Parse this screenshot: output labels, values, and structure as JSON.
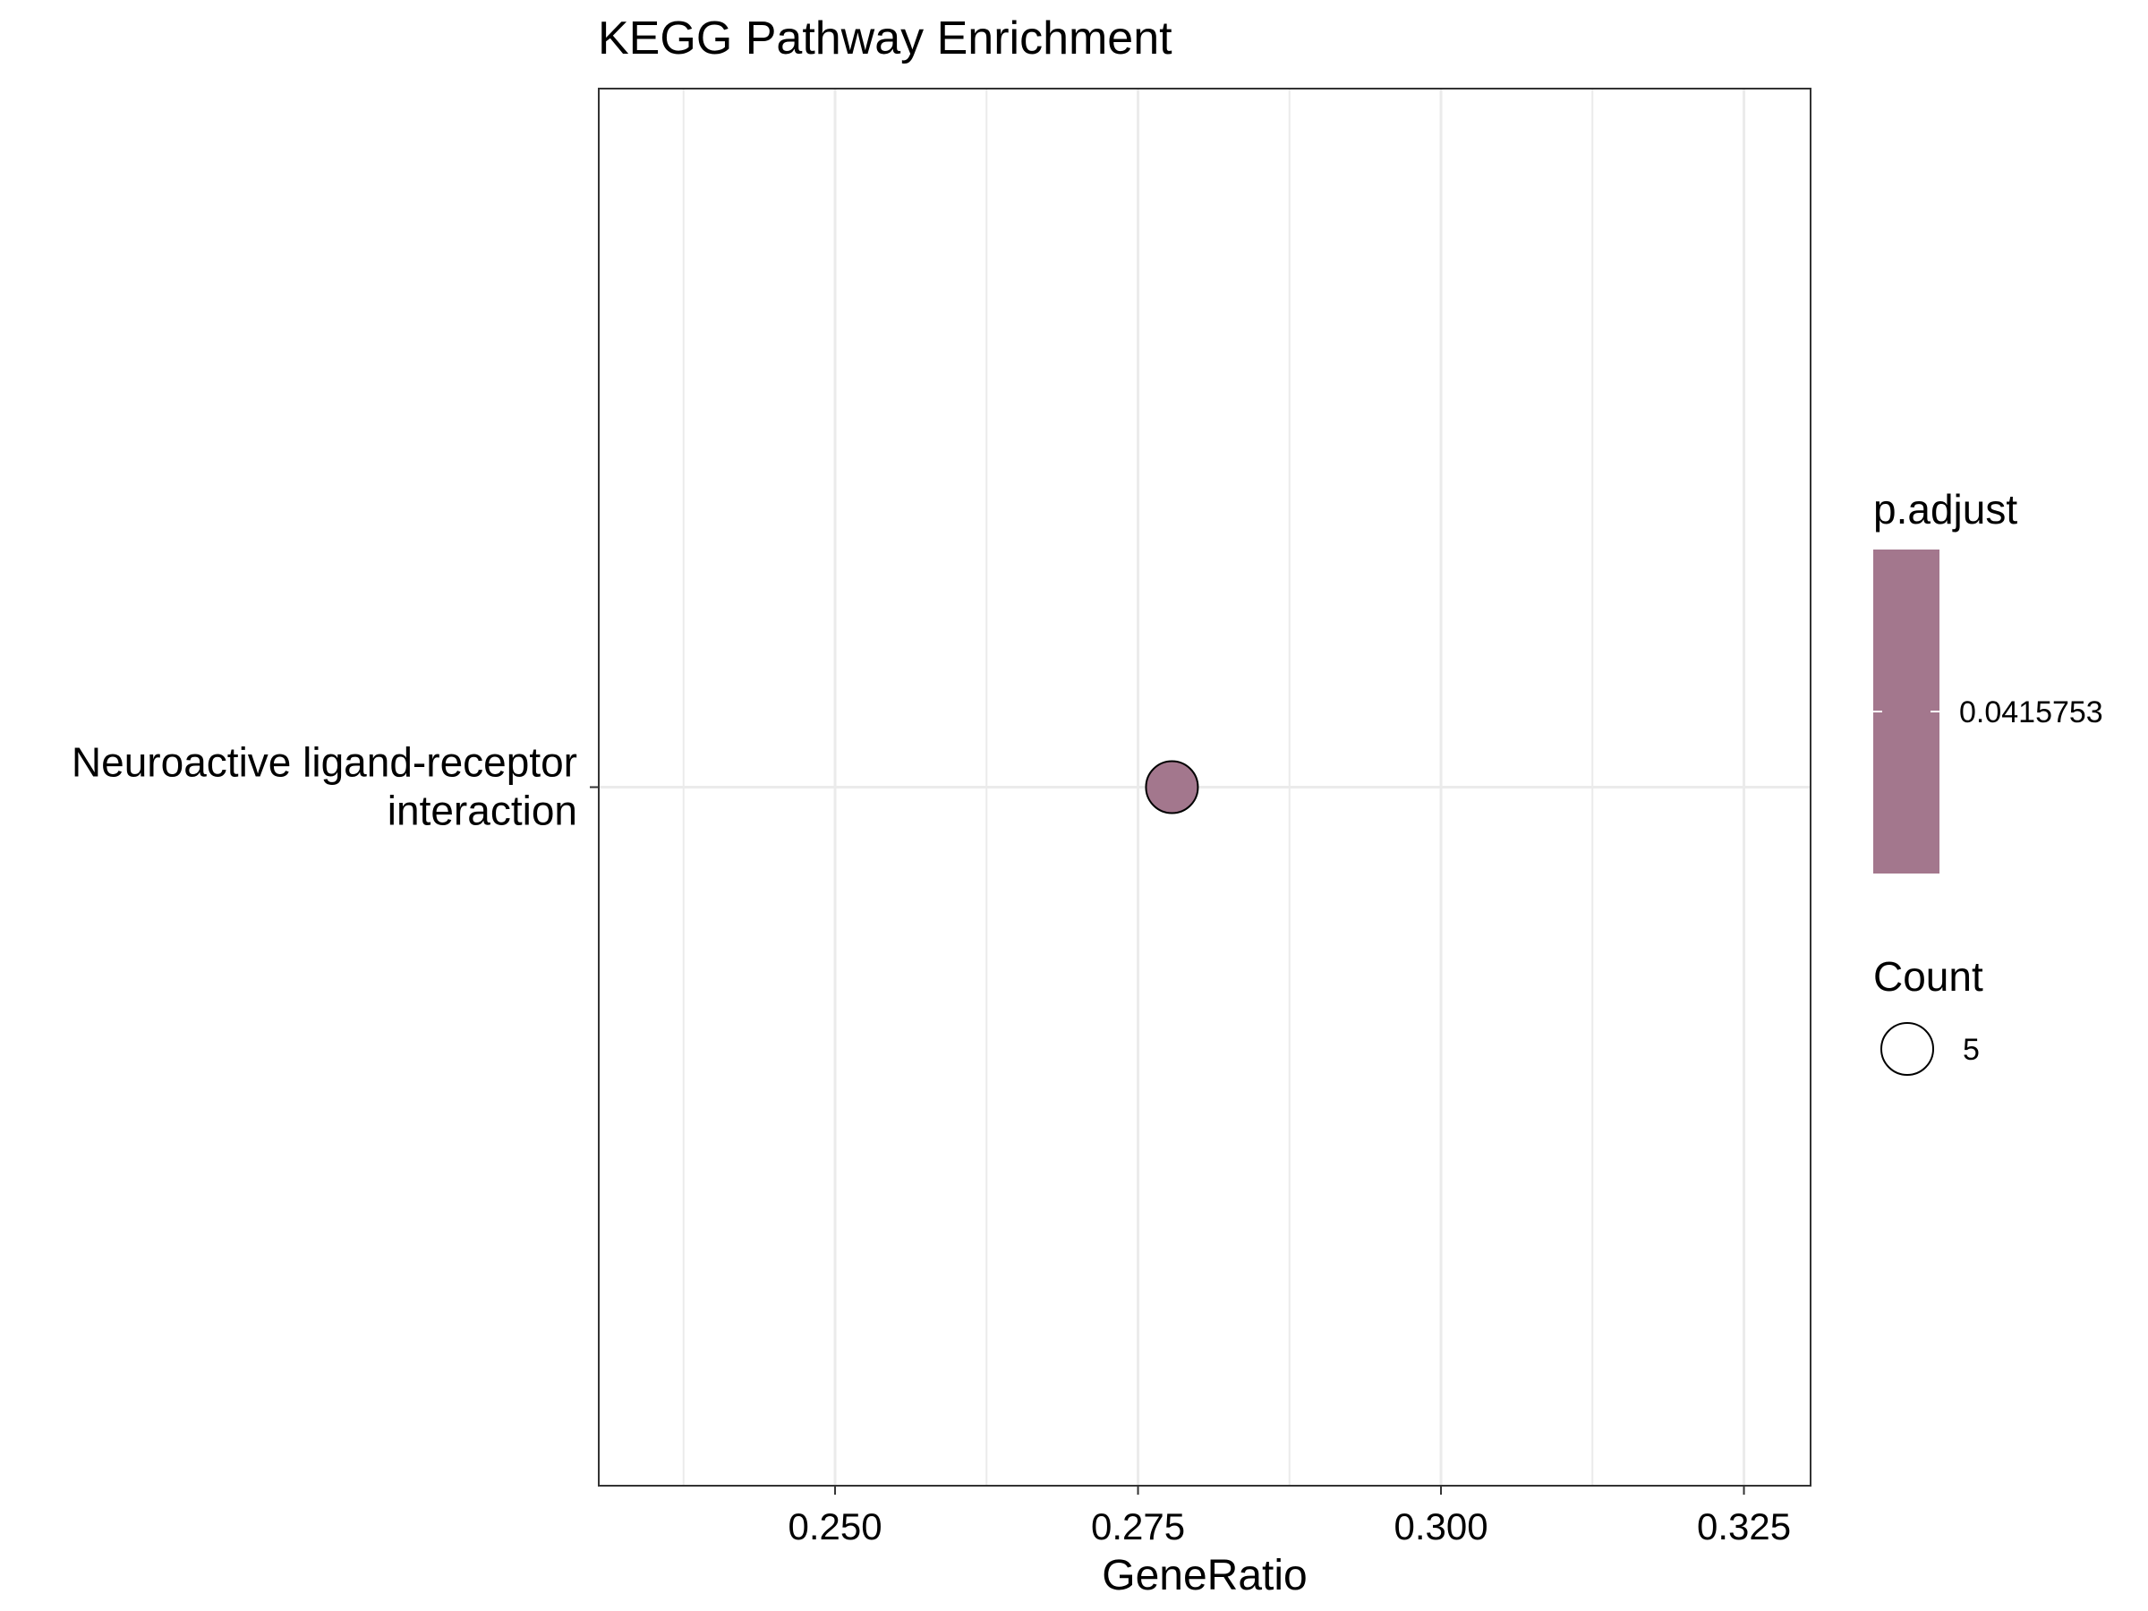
{
  "chart_data": {
    "type": "scatter",
    "title": "KEGG Pathway Enrichment",
    "xlabel": "GeneRatio",
    "ylabel": "",
    "xlim": [
      0.2305,
      0.3305
    ],
    "x_ticks": [
      0.25,
      0.275,
      0.3,
      0.325
    ],
    "x_tick_labels": [
      "0.250",
      "0.275",
      "0.300",
      "0.325"
    ],
    "categories": [
      "Neuroactive ligand-receptor interaction"
    ],
    "category_lines": [
      "Neuroactive ligand-receptor",
      "interaction"
    ],
    "points": [
      {
        "category": "Neuroactive ligand-receptor interaction",
        "x": 0.2778,
        "count": 5,
        "p_adjust": 0.0415753,
        "color": "#A3778D"
      }
    ],
    "grid": true,
    "legend": {
      "position": "right",
      "color": {
        "title": "p.adjust",
        "labels": [
          "0.0415753"
        ],
        "fill": "#A3778D"
      },
      "size": {
        "title": "Count",
        "labels": [
          "5"
        ]
      }
    },
    "colors": {
      "point": "#A3778D",
      "grid": "#EBEBEB",
      "border": "#333333"
    }
  }
}
